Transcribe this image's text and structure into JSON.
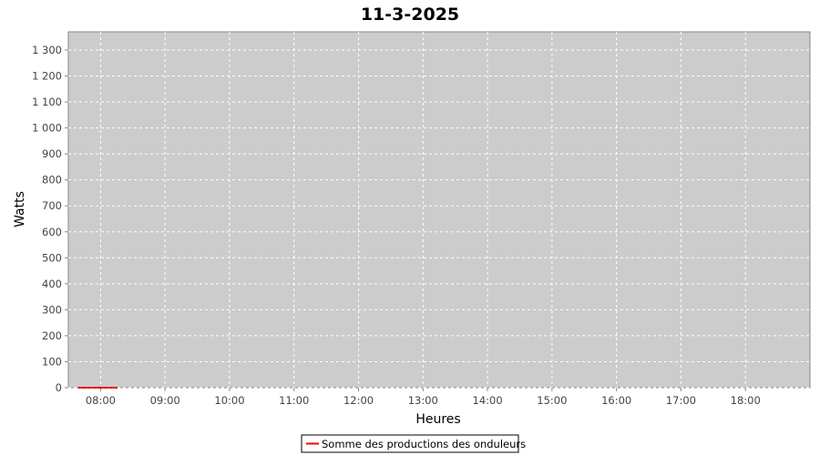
{
  "chart_data": {
    "type": "line",
    "title": "11-3-2025",
    "xlabel": "Heures",
    "ylabel": "Watts",
    "x_unit": "time-of-day (HH:MM)",
    "xlim": [
      "07:30",
      "19:00"
    ],
    "ylim": [
      0,
      1370
    ],
    "y_ticks": [
      {
        "value": 0,
        "label": "0"
      },
      {
        "value": 100,
        "label": "100"
      },
      {
        "value": 200,
        "label": "200"
      },
      {
        "value": 300,
        "label": "300"
      },
      {
        "value": 400,
        "label": "400"
      },
      {
        "value": 500,
        "label": "500"
      },
      {
        "value": 600,
        "label": "600"
      },
      {
        "value": 700,
        "label": "700"
      },
      {
        "value": 800,
        "label": "800"
      },
      {
        "value": 900,
        "label": "900"
      },
      {
        "value": 1000,
        "label": "1 000"
      },
      {
        "value": 1100,
        "label": "1 100"
      },
      {
        "value": 1200,
        "label": "1 200"
      },
      {
        "value": 1300,
        "label": "1 300"
      }
    ],
    "x_ticks": [
      "08:00",
      "09:00",
      "10:00",
      "11:00",
      "12:00",
      "13:00",
      "14:00",
      "15:00",
      "16:00",
      "17:00",
      "18:00"
    ],
    "grid": true,
    "legend_position": "bottom-center",
    "series": [
      {
        "name": "Somme des productions des onduleurs",
        "color": "#ff0000",
        "points": [
          [
            "07:40",
            0
          ],
          [
            "07:45",
            0
          ],
          [
            "07:50",
            0
          ],
          [
            "07:55",
            0
          ],
          [
            "08:00",
            0
          ],
          [
            "08:05",
            0
          ],
          [
            "08:10",
            0
          ],
          [
            "07:58",
            0
          ],
          [
            "08:15",
            0
          ]
        ]
      }
    ]
  }
}
